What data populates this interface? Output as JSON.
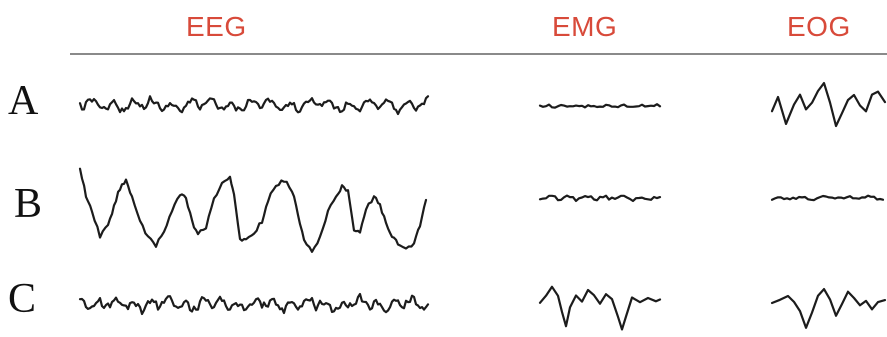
{
  "columns": {
    "eeg": "EEG",
    "emg": "EMG",
    "eog": "EOG"
  },
  "rows": {
    "a": "A",
    "b": "B",
    "c": "C"
  },
  "colors": {
    "header": "#d84a3a",
    "trace": "#1c1c1c",
    "rule": "#8a8a8a"
  }
}
